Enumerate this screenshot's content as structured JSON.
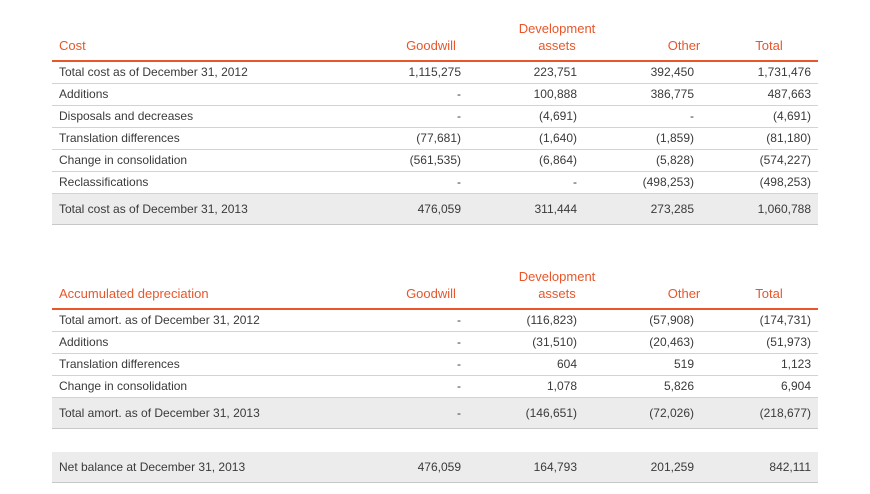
{
  "cost": {
    "headers": {
      "label": "Cost",
      "goodwill": "Goodwill",
      "dev_line1": "Development",
      "dev_line2": "assets",
      "other": "Other",
      "total": "Total"
    },
    "rows": [
      {
        "label": "Total cost as of December 31, 2012",
        "goodwill": "1,115,275",
        "development": "223,751",
        "other": "392,450",
        "total": "1,731,476"
      },
      {
        "label": "Additions",
        "goodwill": "-",
        "development": "100,888",
        "other": "386,775",
        "total": "487,663"
      },
      {
        "label": "Disposals and decreases",
        "goodwill": "-",
        "development": "(4,691)",
        "other": "-",
        "total": "(4,691)"
      },
      {
        "label": "Translation differences",
        "goodwill": "(77,681)",
        "development": "(1,640)",
        "other": "(1,859)",
        "total": "(81,180)"
      },
      {
        "label": "Change in consolidation",
        "goodwill": "(561,535)",
        "development": "(6,864)",
        "other": "(5,828)",
        "total": "(574,227)"
      },
      {
        "label": "Reclassifications",
        "goodwill": "-",
        "development": "-",
        "other": "(498,253)",
        "total": "(498,253)"
      }
    ],
    "total_row": {
      "label": "Total cost as of December 31, 2013",
      "goodwill": "476,059",
      "development": "311,444",
      "other": "273,285",
      "total": "1,060,788"
    }
  },
  "depreciation": {
    "headers": {
      "label": "Accumulated depreciation",
      "goodwill": "Goodwill",
      "dev_line1": "Development",
      "dev_line2": "assets",
      "other": "Other",
      "total": "Total"
    },
    "rows": [
      {
        "label": "Total amort. as of December 31, 2012",
        "goodwill": "-",
        "development": "(116,823)",
        "other": "(57,908)",
        "total": "(174,731)"
      },
      {
        "label": "Additions",
        "goodwill": "-",
        "development": "(31,510)",
        "other": "(20,463)",
        "total": "(51,973)"
      },
      {
        "label": "Translation differences",
        "goodwill": "-",
        "development": "604",
        "other": "519",
        "total": "1,123"
      },
      {
        "label": "Change in consolidation",
        "goodwill": "-",
        "development": "1,078",
        "other": "5,826",
        "total": "6,904"
      }
    ],
    "total_row": {
      "label": "Total amort. as of December 31, 2013",
      "goodwill": "-",
      "development": "(146,651)",
      "other": "(72,026)",
      "total": "(218,677)"
    }
  },
  "net": {
    "label": "Net balance at December 31, 2013",
    "goodwill": "476,059",
    "development": "164,793",
    "other": "201,259",
    "total": "842,111"
  },
  "colors": {
    "accent": "#e8562a",
    "total_bg": "#ececec",
    "rule": "#d3d3d3"
  }
}
